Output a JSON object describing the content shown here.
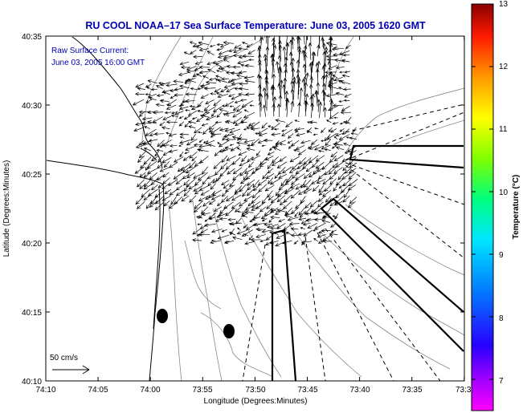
{
  "title": "RU COOL  NOAA–17  Sea Surface Temperature:  June 03, 2005 1620 GMT",
  "annotation": {
    "line1": "Raw Surface Current:",
    "line2": "June 03, 2005 16:00 GMT"
  },
  "scale_label": "50 cm/s",
  "axes": {
    "xlabel": "Longitude (Degrees:Minutes)",
    "ylabel": "Latitude (Degrees:Minutes)",
    "x_ticks": [
      "74:10",
      "74:05",
      "74:00",
      "73:55",
      "73:50",
      "73:45",
      "73:40",
      "73:35",
      "73:3"
    ],
    "y_ticks": [
      "40:35",
      "40:30",
      "40:25",
      "40:20",
      "40:15",
      "40:10"
    ]
  },
  "colorbar": {
    "label": "Temperature (°C)",
    "ticks": [
      "13",
      "12",
      "11",
      "10",
      "9",
      "8",
      "7"
    ],
    "min": 6.5,
    "max": 13
  },
  "colors": {
    "title": "#0000b4",
    "frame": "#000000",
    "contour": "#888888"
  }
}
